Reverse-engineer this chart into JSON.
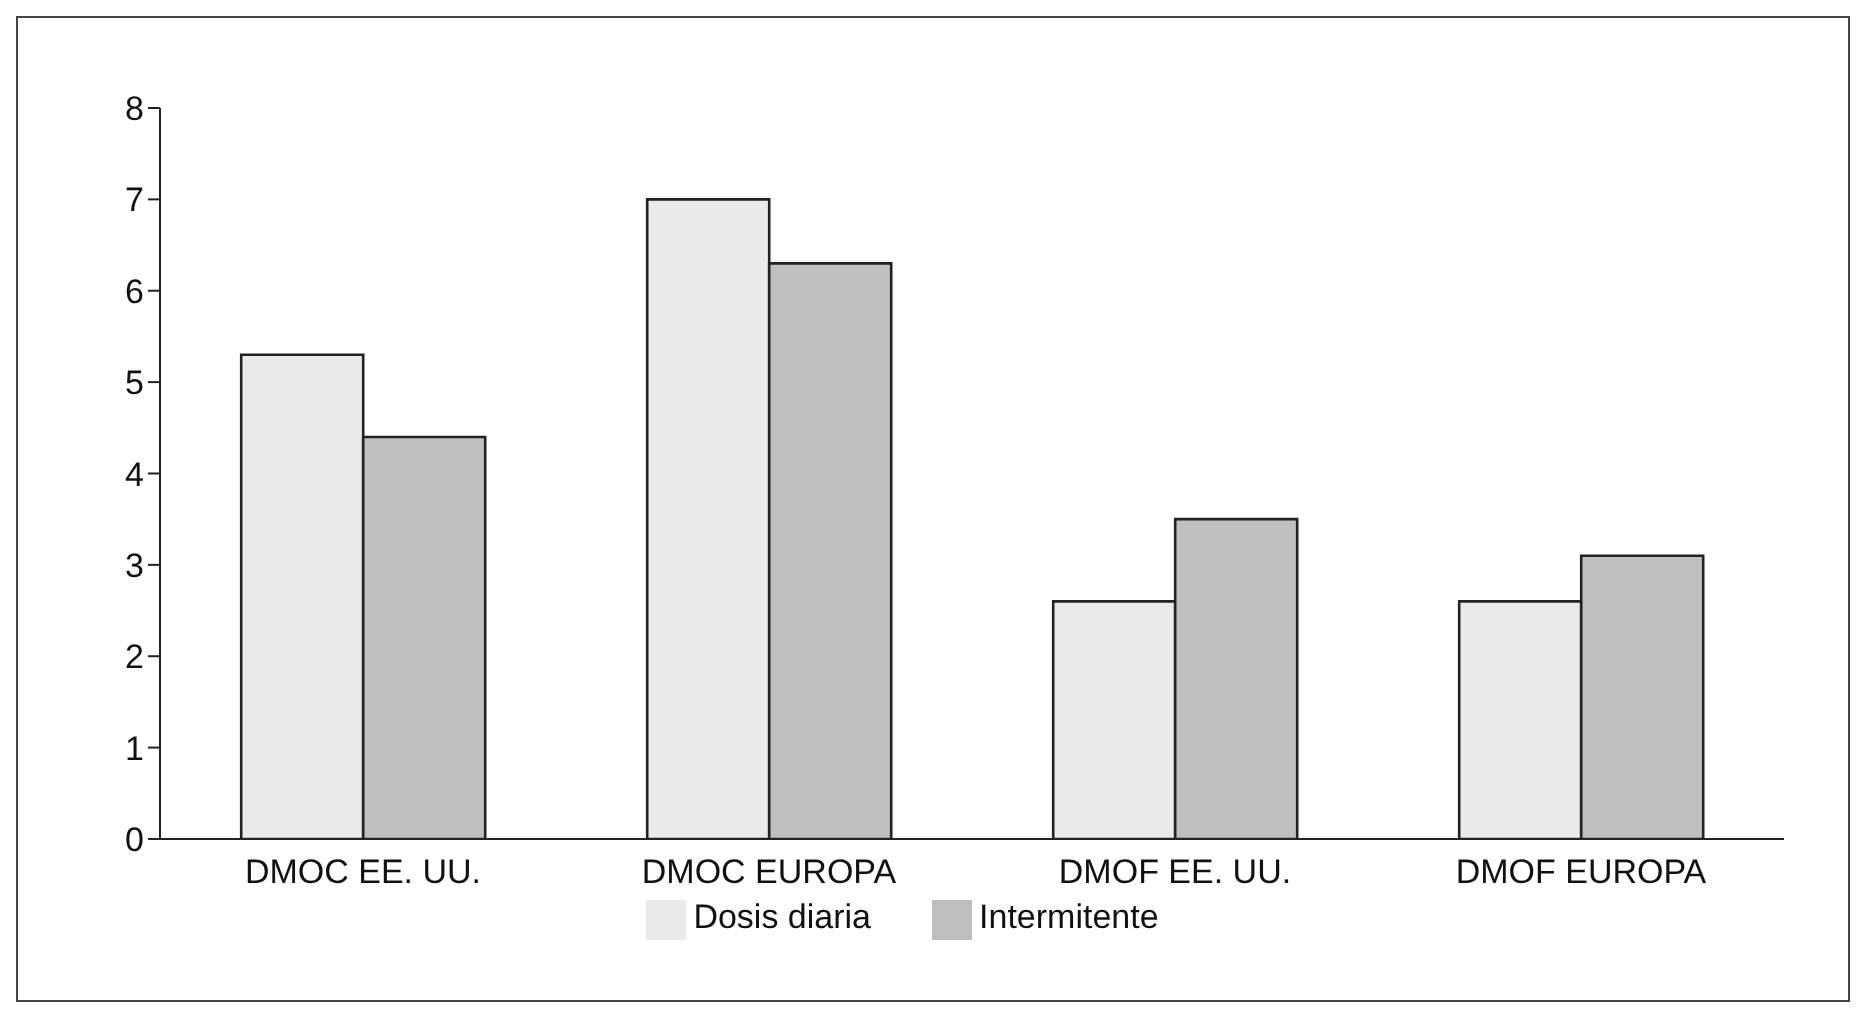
{
  "chart_data": {
    "type": "bar",
    "categories": [
      "DMOC EE. UU.",
      "DMOC EUROPA",
      "DMOF EE. UU.",
      "DMOF EUROPA"
    ],
    "series": [
      {
        "name": "Dosis diaria",
        "color": "#ebeae8",
        "values": [
          5.3,
          7.0,
          2.6,
          2.6
        ]
      },
      {
        "name": "Intermitente",
        "color": "#bfbfbf",
        "values": [
          4.4,
          6.3,
          3.5,
          3.1
        ]
      }
    ],
    "ylim": [
      0,
      8
    ],
    "yticks": [
      0,
      1,
      2,
      3,
      4,
      5,
      6,
      7,
      8
    ],
    "grid": false,
    "legend": "bottom"
  }
}
